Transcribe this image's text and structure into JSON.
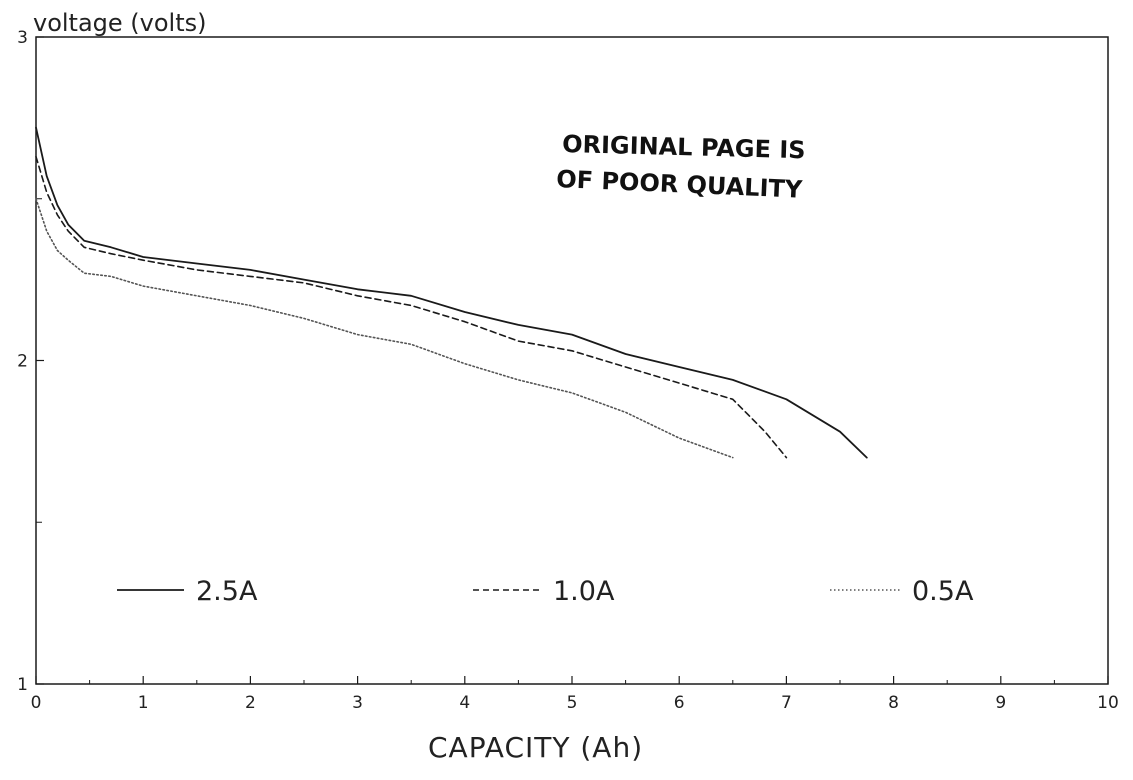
{
  "chart_data": {
    "type": "line",
    "title": "",
    "ylabel": "voltage  (volts)",
    "xlabel": "CAPACITY  (Ah)",
    "xlim": [
      0,
      10
    ],
    "ylim": [
      1,
      3
    ],
    "xticks": [
      0,
      1,
      2,
      3,
      4,
      5,
      6,
      7,
      8,
      9,
      10
    ],
    "yticks": [
      1,
      2,
      3
    ],
    "y_minor_ticks": [
      1.5,
      2.5
    ],
    "grid": false,
    "legend_placement": "inside, lower portion, horizontal",
    "stamp": {
      "line1": "ORIGINAL PAGE IS",
      "line2": "OF POOR QUALITY"
    },
    "series": [
      {
        "name": "2.5A",
        "style": "solid",
        "color": "#1a1a1a",
        "x": [
          0,
          0.1,
          0.2,
          0.3,
          0.45,
          0.7,
          1.0,
          1.5,
          2.0,
          2.5,
          3.0,
          3.5,
          4.0,
          4.5,
          5.0,
          5.5,
          6.0,
          6.5,
          7.0,
          7.5,
          7.75
        ],
        "y": [
          2.72,
          2.57,
          2.48,
          2.42,
          2.37,
          2.35,
          2.32,
          2.3,
          2.28,
          2.25,
          2.22,
          2.2,
          2.15,
          2.11,
          2.08,
          2.02,
          1.98,
          1.94,
          1.88,
          1.78,
          1.7
        ]
      },
      {
        "name": "1.0A",
        "style": "dashed",
        "color": "#1a1a1a",
        "x": [
          0,
          0.1,
          0.2,
          0.3,
          0.45,
          0.7,
          1.0,
          1.5,
          2.0,
          2.5,
          3.0,
          3.5,
          4.0,
          4.5,
          5.0,
          5.5,
          6.0,
          6.5,
          6.8,
          7.0
        ],
        "y": [
          2.63,
          2.52,
          2.45,
          2.4,
          2.35,
          2.33,
          2.31,
          2.28,
          2.26,
          2.24,
          2.2,
          2.17,
          2.12,
          2.06,
          2.03,
          1.98,
          1.93,
          1.88,
          1.78,
          1.7
        ]
      },
      {
        "name": "0.5A",
        "style": "dotted",
        "color": "#555555",
        "x": [
          0,
          0.1,
          0.2,
          0.3,
          0.45,
          0.7,
          1.0,
          1.5,
          2.0,
          2.5,
          3.0,
          3.5,
          4.0,
          4.5,
          5.0,
          5.5,
          6.0,
          6.5
        ],
        "y": [
          2.5,
          2.4,
          2.34,
          2.31,
          2.27,
          2.26,
          2.23,
          2.2,
          2.17,
          2.13,
          2.08,
          2.05,
          1.99,
          1.94,
          1.9,
          1.84,
          1.76,
          1.7
        ]
      }
    ]
  }
}
